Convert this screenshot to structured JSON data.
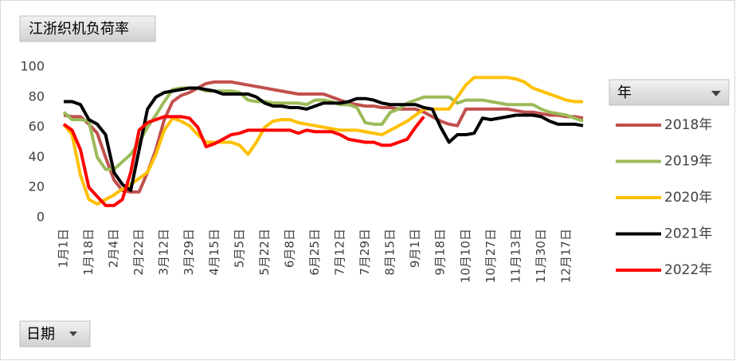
{
  "chart_data": {
    "type": "line",
    "title": "江浙织机负荷率",
    "legend_title": "年",
    "field_button": "日期",
    "categories": [
      "1月1日",
      null,
      null,
      "1月18日",
      null,
      null,
      "2月4日",
      null,
      null,
      "2月22日",
      null,
      null,
      "3月12日",
      null,
      null,
      "3月29日",
      null,
      null,
      "4月15日",
      null,
      null,
      "5月5日",
      null,
      null,
      "5月22日",
      null,
      null,
      "6月8日",
      null,
      null,
      "6月25日",
      null,
      null,
      "7月12日",
      null,
      null,
      "7月29日",
      null,
      null,
      "8月15日",
      null,
      null,
      "9月1日",
      null,
      null,
      "9月18日",
      null,
      null,
      "10月10日",
      null,
      null,
      "10月27日",
      null,
      null,
      "11月13日",
      null,
      null,
      "11月30日",
      null,
      null,
      "12月17日",
      null,
      null
    ],
    "ylim": [
      0,
      100
    ],
    "yticks": [
      0,
      20,
      40,
      60,
      80,
      100
    ],
    "grid": false,
    "legend": "right",
    "series": [
      {
        "name": "2018年",
        "color": "#c0504d",
        "values": [
          68,
          67,
          67,
          62,
          56,
          40,
          25,
          18,
          17,
          17,
          30,
          45,
          65,
          77,
          81,
          83,
          86,
          89,
          90,
          90,
          90,
          89,
          88,
          87,
          86,
          85,
          84,
          83,
          82,
          82,
          82,
          82,
          80,
          78,
          76,
          75,
          74,
          74,
          73,
          73,
          72,
          72,
          72,
          70,
          67,
          64,
          62,
          61,
          72,
          72,
          72,
          72,
          72,
          72,
          71,
          70,
          70,
          69,
          68,
          68,
          67,
          67,
          66
        ]
      },
      {
        "name": "2019年",
        "color": "#9bbb59",
        "values": [
          70,
          65,
          65,
          64,
          40,
          32,
          32,
          37,
          42,
          50,
          60,
          68,
          77,
          85,
          86,
          86,
          86,
          84,
          84,
          84,
          84,
          83,
          78,
          77,
          77,
          76,
          76,
          76,
          76,
          75,
          78,
          78,
          77,
          75,
          75,
          73,
          63,
          62,
          62,
          70,
          72,
          76,
          78,
          80,
          80,
          80,
          80,
          76,
          78,
          78,
          78,
          77,
          76,
          75,
          75,
          75,
          75,
          72,
          70,
          69,
          68,
          66,
          64
        ]
      },
      {
        "name": "2020年",
        "color": "#ffc000",
        "values": [
          62,
          55,
          28,
          12,
          9,
          12,
          15,
          19,
          22,
          26,
          30,
          42,
          58,
          66,
          64,
          61,
          55,
          50,
          50,
          50,
          50,
          48,
          42,
          50,
          60,
          64,
          65,
          65,
          63,
          62,
          61,
          60,
          59,
          58,
          58,
          58,
          57,
          56,
          55,
          58,
          61,
          64,
          68,
          72,
          72,
          72,
          72,
          80,
          88,
          93,
          93,
          93,
          93,
          93,
          92,
          90,
          86,
          84,
          82,
          80,
          78,
          77,
          77
        ]
      },
      {
        "name": "2021年",
        "color": "#000000",
        "values": [
          77,
          77,
          75,
          65,
          62,
          55,
          30,
          22,
          18,
          45,
          72,
          80,
          83,
          84,
          85,
          86,
          86,
          85,
          84,
          82,
          82,
          82,
          82,
          80,
          76,
          74,
          74,
          73,
          73,
          72,
          74,
          76,
          76,
          76,
          77,
          79,
          79,
          78,
          76,
          75,
          75,
          75,
          75,
          73,
          72,
          60,
          50,
          55,
          55,
          56,
          66,
          65,
          66,
          67,
          68,
          68,
          68,
          67,
          64,
          62,
          62,
          62,
          61
        ]
      },
      {
        "name": "2022年",
        "color": "#ff0000",
        "values": [
          62,
          58,
          45,
          20,
          14,
          8,
          8,
          12,
          30,
          58,
          63,
          65,
          67,
          67,
          67,
          66,
          60,
          47,
          49,
          52,
          55,
          56,
          58,
          58,
          58,
          58,
          58,
          58,
          56,
          58,
          57,
          57,
          57,
          55,
          52,
          51,
          50,
          50,
          48,
          48,
          50,
          52,
          60,
          67,
          null,
          null,
          null,
          null,
          null,
          null,
          null,
          null,
          null,
          null,
          null,
          null,
          null,
          null,
          null,
          null,
          null,
          null,
          null
        ]
      }
    ]
  }
}
